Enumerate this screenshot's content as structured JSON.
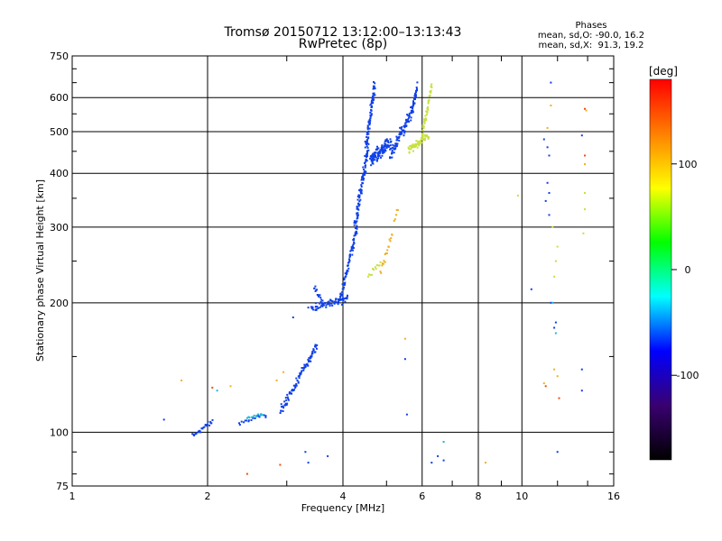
{
  "chart_data": {
    "type": "scatter",
    "title": "Tromsø 20150712 13:12:00–13:13:43",
    "subtitle": "RwPretec (8p)",
    "xlabel": "Frequency [MHz]",
    "ylabel": "Stationary phase Virtual Height [km]",
    "x_scale": "log2",
    "y_scale": "log",
    "xlim": [
      1,
      16
    ],
    "ylim": [
      75,
      750
    ],
    "x_ticks": [
      1,
      2,
      4,
      6,
      8,
      10,
      16
    ],
    "x_tick_labels": [
      "1",
      "2",
      "4",
      "6",
      "8",
      "10",
      "16"
    ],
    "y_ticks": [
      75,
      100,
      200,
      300,
      400,
      500,
      600,
      750
    ],
    "y_tick_labels": [
      "75",
      "100",
      "200",
      "300",
      "400",
      "500",
      "600",
      "750"
    ],
    "grid": true,
    "legend": {
      "title": "Phases",
      "lines": [
        "mean, sd,O: -90.0, 16.2",
        "mean, sd,X:  91.3, 19.2"
      ],
      "placement": "top-right"
    },
    "colorbar": {
      "label": "[deg]",
      "range": [
        -180,
        180
      ],
      "ticks": [
        100,
        0,
        -100
      ],
      "tick_labels": [
        "100",
        "0",
        "-100"
      ],
      "colors": [
        "#000000",
        "#3a0070",
        "#0000ff",
        "#00ffff",
        "#00ff00",
        "#ffff00",
        "#ff8000",
        "#ff0000"
      ]
    },
    "series": [
      {
        "phase": -100,
        "color": "#1040e8",
        "traces": [
          {
            "f0": 1.85,
            "f1": 2.05,
            "h0": 98,
            "h1": 106,
            "n": 25,
            "sf": 0.015,
            "sh": 2
          },
          {
            "f0": 2.35,
            "f1": 2.7,
            "h0": 105,
            "h1": 110,
            "n": 20,
            "sf": 0.02,
            "sh": 2
          },
          {
            "f0": 2.9,
            "f1": 3.5,
            "h0": 112,
            "h1": 160,
            "n": 90,
            "sf": 0.02,
            "sh": 4
          },
          {
            "f0": 3.4,
            "f1": 4.1,
            "h0": 195,
            "h1": 205,
            "n": 70,
            "sf": 0.03,
            "sh": 6
          },
          {
            "f0": 3.45,
            "f1": 3.6,
            "h0": 220,
            "h1": 200,
            "n": 15,
            "sf": 0.02,
            "sh": 5
          },
          {
            "f0": 3.95,
            "f1": 4.3,
            "h0": 205,
            "h1": 300,
            "n": 70,
            "sf": 0.03,
            "sh": 8
          },
          {
            "f0": 4.25,
            "f1": 4.55,
            "h0": 300,
            "h1": 460,
            "n": 90,
            "sf": 0.04,
            "sh": 15
          },
          {
            "f0": 4.5,
            "f1": 4.7,
            "h0": 460,
            "h1": 640,
            "n": 80,
            "sf": 0.04,
            "sh": 20
          },
          {
            "f0": 4.6,
            "f1": 5.1,
            "h0": 430,
            "h1": 470,
            "n": 110,
            "sf": 0.05,
            "sh": 25
          },
          {
            "f0": 5.1,
            "f1": 5.7,
            "h0": 440,
            "h1": 560,
            "n": 90,
            "sf": 0.05,
            "sh": 25
          },
          {
            "f0": 5.7,
            "f1": 5.85,
            "h0": 560,
            "h1": 640,
            "n": 30,
            "sf": 0.02,
            "sh": 20
          }
        ],
        "points": [
          [
            1.6,
            107
          ],
          [
            3.1,
            185
          ],
          [
            3.35,
            195
          ],
          [
            5.5,
            148
          ],
          [
            5.55,
            110
          ],
          [
            6.3,
            85
          ],
          [
            6.5,
            88
          ],
          [
            6.7,
            86
          ],
          [
            11.6,
            650
          ],
          [
            11.2,
            480
          ],
          [
            11.4,
            460
          ],
          [
            11.5,
            440
          ],
          [
            11.4,
            380
          ],
          [
            11.5,
            360
          ],
          [
            11.3,
            345
          ],
          [
            11.5,
            320
          ],
          [
            11.6,
            200
          ],
          [
            12.0,
            90
          ],
          [
            13.6,
            490
          ],
          [
            13.6,
            140
          ],
          [
            13.6,
            125
          ],
          [
            3.7,
            88
          ],
          [
            3.3,
            90
          ],
          [
            3.35,
            85
          ],
          [
            10.5,
            215
          ],
          [
            11.9,
            180
          ],
          [
            11.8,
            175
          ]
        ]
      },
      {
        "phase": -30,
        "color": "#20b8d8",
        "traces": [
          {
            "f0": 2.45,
            "f1": 2.65,
            "h0": 108,
            "h1": 110,
            "n": 12,
            "sf": 0.01,
            "sh": 1
          }
        ],
        "points": [
          [
            2.1,
            125
          ],
          [
            6.7,
            95
          ],
          [
            11.7,
            200
          ],
          [
            11.9,
            170
          ]
        ]
      },
      {
        "phase": 60,
        "color": "#c8e040",
        "traces": [
          {
            "f0": 4.55,
            "f1": 4.85,
            "h0": 230,
            "h1": 250,
            "n": 12,
            "sf": 0.015,
            "sh": 6
          },
          {
            "f0": 5.6,
            "f1": 6.2,
            "h0": 455,
            "h1": 490,
            "n": 60,
            "sf": 0.04,
            "sh": 15
          },
          {
            "f0": 6.0,
            "f1": 6.3,
            "h0": 490,
            "h1": 640,
            "n": 45,
            "sf": 0.02,
            "sh": 25
          }
        ],
        "points": [
          [
            11.7,
            300
          ],
          [
            12.0,
            270
          ],
          [
            11.9,
            250
          ],
          [
            11.8,
            230
          ],
          [
            13.8,
            360
          ],
          [
            13.8,
            330
          ],
          [
            13.7,
            290
          ],
          [
            9.8,
            355
          ]
        ]
      },
      {
        "phase": 115,
        "color": "#f0b020",
        "traces": [
          {
            "f0": 4.85,
            "f1": 5.15,
            "h0": 235,
            "h1": 290,
            "n": 18,
            "sf": 0.015,
            "sh": 8
          },
          {
            "f0": 5.2,
            "f1": 5.3,
            "h0": 310,
            "h1": 330,
            "n": 5,
            "sf": 0.01,
            "sh": 5
          }
        ],
        "points": [
          [
            1.75,
            132
          ],
          [
            2.25,
            128
          ],
          [
            2.85,
            132
          ],
          [
            2.95,
            138
          ],
          [
            5.5,
            165
          ],
          [
            8.3,
            85
          ],
          [
            11.8,
            140
          ],
          [
            12.0,
            135
          ],
          [
            11.4,
            510
          ],
          [
            11.6,
            575
          ],
          [
            13.8,
            420
          ],
          [
            13.9,
            560
          ],
          [
            11.2,
            130
          ]
        ]
      },
      {
        "phase": 150,
        "color": "#e85010",
        "traces": [],
        "points": [
          [
            2.05,
            127
          ],
          [
            2.45,
            80
          ],
          [
            2.9,
            84
          ],
          [
            11.3,
            128
          ],
          [
            13.8,
            440
          ],
          [
            12.1,
            120
          ],
          [
            13.8,
            565
          ]
        ]
      }
    ]
  }
}
